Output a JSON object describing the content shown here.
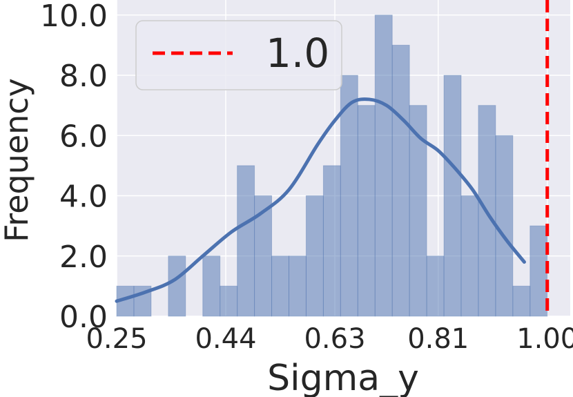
{
  "chart_data": {
    "type": "histogram",
    "title": "",
    "xlabel": "Sigma_y",
    "ylabel": "Frequency",
    "xlim": [
      0.25,
      1.04
    ],
    "ylim": [
      0,
      10.5
    ],
    "x_ticks": [
      0.25,
      0.44,
      0.63,
      0.81,
      1.0
    ],
    "x_tick_labels": [
      "0.25",
      "0.44",
      "0.63",
      "0.81",
      "1.00"
    ],
    "y_ticks": [
      0,
      2,
      4,
      6,
      8,
      10
    ],
    "y_tick_labels": [
      "0.0",
      "2.0",
      "4.0",
      "6.0",
      "8.0",
      "10.0"
    ],
    "grid": true,
    "background": "#EAEAF2",
    "histogram": {
      "bin_start": 0.25,
      "bin_width": 0.03,
      "counts": [
        1,
        1,
        0,
        2,
        0,
        2,
        1,
        5,
        4,
        2,
        2,
        4,
        5,
        8,
        7,
        10,
        9,
        7,
        2,
        8,
        4,
        7,
        6,
        1,
        3
      ],
      "color": "#4C72B0",
      "alpha": 0.5
    },
    "kde": {
      "x": [
        0.25,
        0.3,
        0.35,
        0.4,
        0.45,
        0.5,
        0.55,
        0.6,
        0.63,
        0.66,
        0.69,
        0.72,
        0.75,
        0.78,
        0.81,
        0.84,
        0.87,
        0.9,
        0.93,
        0.96
      ],
      "y": [
        0.5,
        0.8,
        1.2,
        2.0,
        2.8,
        3.4,
        4.2,
        5.7,
        6.5,
        7.1,
        7.2,
        7.0,
        6.5,
        5.9,
        5.5,
        4.9,
        4.2,
        3.3,
        2.5,
        1.8
      ],
      "color": "#4C72B0"
    },
    "reference_line": {
      "x": 1.0,
      "label": "1.0",
      "color": "#FF0000",
      "style": "dashed"
    },
    "legend": {
      "placement": "upper-left",
      "entries": [
        {
          "label": "1.0",
          "color": "#FF0000",
          "style": "dashed"
        }
      ]
    }
  }
}
